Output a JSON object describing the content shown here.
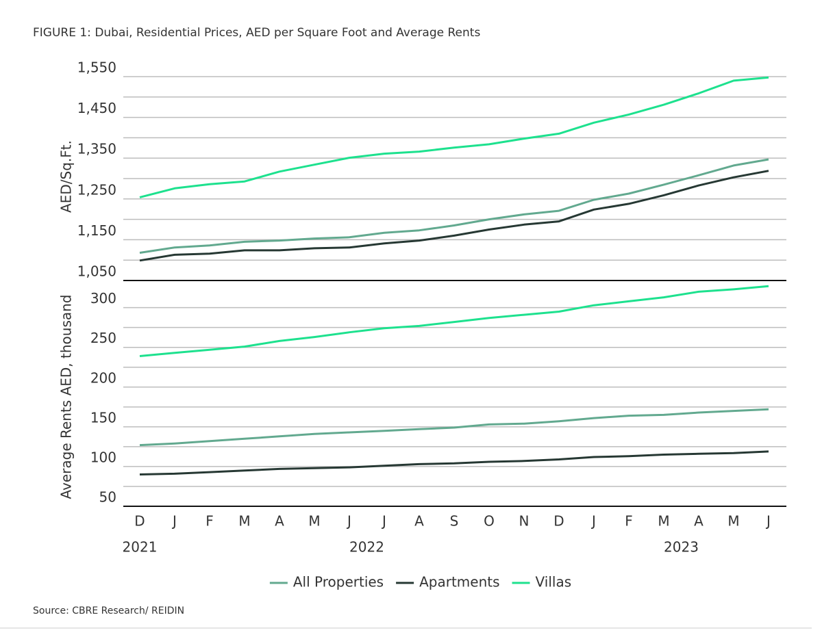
{
  "title": "FIGURE 1: Dubai, Residential Prices, AED per Square Foot and Average Rents",
  "source": "Source: CBRE Research/ REIDIN",
  "year_labels": [
    {
      "label": "2021",
      "from": 0,
      "to": 0
    },
    {
      "label": "2022",
      "from": 1,
      "to": 12
    },
    {
      "label": "2023",
      "from": 13,
      "to": 18
    }
  ],
  "chart_data": [
    {
      "type": "line",
      "y_label": "AED/Sq.Ft.",
      "ylim": [
        1050,
        1560
      ],
      "yticks": [
        {
          "value": 1050,
          "label": "1,050"
        },
        {
          "value": 1150,
          "label": "1,150"
        },
        {
          "value": 1250,
          "label": "1,250"
        },
        {
          "value": 1350,
          "label": "1,350"
        },
        {
          "value": 1450,
          "label": "1,450"
        },
        {
          "value": 1550,
          "label": "1,550"
        }
      ],
      "minor_yticks": [
        1100,
        1200,
        1300,
        1400,
        1500
      ],
      "grid": true,
      "series": [
        {
          "name": "All Properties",
          "color": "#62a98f",
          "values": [
            1118,
            1131,
            1136,
            1145,
            1148,
            1153,
            1156,
            1167,
            1173,
            1185,
            1200,
            1212,
            1221,
            1248,
            1263,
            1285,
            1308,
            1332,
            1347
          ]
        },
        {
          "name": "Apartments",
          "color": "#263833",
          "values": [
            1099,
            1113,
            1116,
            1124,
            1124,
            1129,
            1131,
            1141,
            1148,
            1160,
            1175,
            1187,
            1195,
            1224,
            1238,
            1259,
            1283,
            1303,
            1319
          ]
        },
        {
          "name": "Villas",
          "color": "#1de18e",
          "values": [
            1254,
            1276,
            1286,
            1293,
            1317,
            1334,
            1351,
            1361,
            1366,
            1376,
            1384,
            1398,
            1410,
            1437,
            1457,
            1481,
            1509,
            1540,
            1548
          ]
        }
      ]
    },
    {
      "type": "line",
      "y_label": "Average Rents AED, thousand",
      "categories": [
        "D",
        "J",
        "F",
        "M",
        "A",
        "M",
        "J",
        "J",
        "A",
        "S",
        "O",
        "N",
        "D",
        "J",
        "F",
        "M",
        "A",
        "M",
        "J"
      ],
      "ylim": [
        50,
        335
      ],
      "yticks": [
        50,
        100,
        150,
        200,
        250,
        300
      ],
      "minor_yticks": [
        75,
        125,
        175,
        225,
        275
      ],
      "grid": true,
      "series": [
        {
          "color": "#62a98f",
          "values": [
            127,
            129,
            132,
            135,
            138,
            141,
            143,
            145,
            147,
            149,
            153,
            154,
            157,
            161,
            164,
            165,
            168,
            170,
            172
          ]
        },
        {
          "color": "#263833",
          "values": [
            90,
            91,
            93,
            95,
            97,
            98,
            99,
            101,
            103,
            104,
            106,
            107,
            109,
            112,
            113,
            115,
            116,
            117,
            119
          ]
        },
        {
          "color": "#1de18e",
          "values": [
            239,
            243,
            247,
            251,
            258,
            263,
            269,
            274,
            277,
            282,
            287,
            291,
            295,
            303,
            308,
            313,
            320,
            323,
            327
          ]
        }
      ]
    }
  ]
}
